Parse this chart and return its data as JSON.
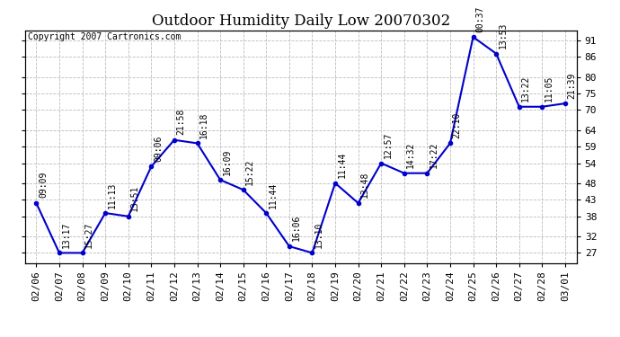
{
  "title": "Outdoor Humidity Daily Low 20070302",
  "copyright": "Copyright 2007 Cartronics.com",
  "x_labels": [
    "02/06",
    "02/07",
    "02/08",
    "02/09",
    "02/10",
    "02/11",
    "02/12",
    "02/13",
    "02/14",
    "02/15",
    "02/16",
    "02/17",
    "02/18",
    "02/19",
    "02/20",
    "02/21",
    "02/22",
    "02/23",
    "02/24",
    "02/25",
    "02/26",
    "02/27",
    "02/28",
    "03/01"
  ],
  "y_values": [
    42,
    27,
    27,
    39,
    38,
    53,
    61,
    60,
    49,
    46,
    39,
    29,
    27,
    48,
    42,
    54,
    51,
    51,
    60,
    92,
    87,
    71,
    71,
    72
  ],
  "time_labels": [
    "09:09",
    "13:17",
    "15:27",
    "11:13",
    "13:51",
    "09:06",
    "21:58",
    "16:18",
    "16:09",
    "15:22",
    "11:44",
    "16:06",
    "13:10",
    "11:44",
    "13:48",
    "12:57",
    "14:32",
    "17:22",
    "22:10",
    "00:37",
    "13:53",
    "13:22",
    "11:05",
    "21:39"
  ],
  "y_ticks": [
    27,
    32,
    38,
    43,
    48,
    54,
    59,
    64,
    70,
    75,
    80,
    86,
    91
  ],
  "y_min": 24,
  "y_max": 94,
  "line_color": "#0000cc",
  "marker_color": "#0000cc",
  "bg_color": "#ffffff",
  "plot_bg_color": "#ffffff",
  "grid_color": "#bbbbbb",
  "title_fontsize": 12,
  "copyright_fontsize": 7,
  "label_fontsize": 7,
  "tick_fontsize": 8
}
